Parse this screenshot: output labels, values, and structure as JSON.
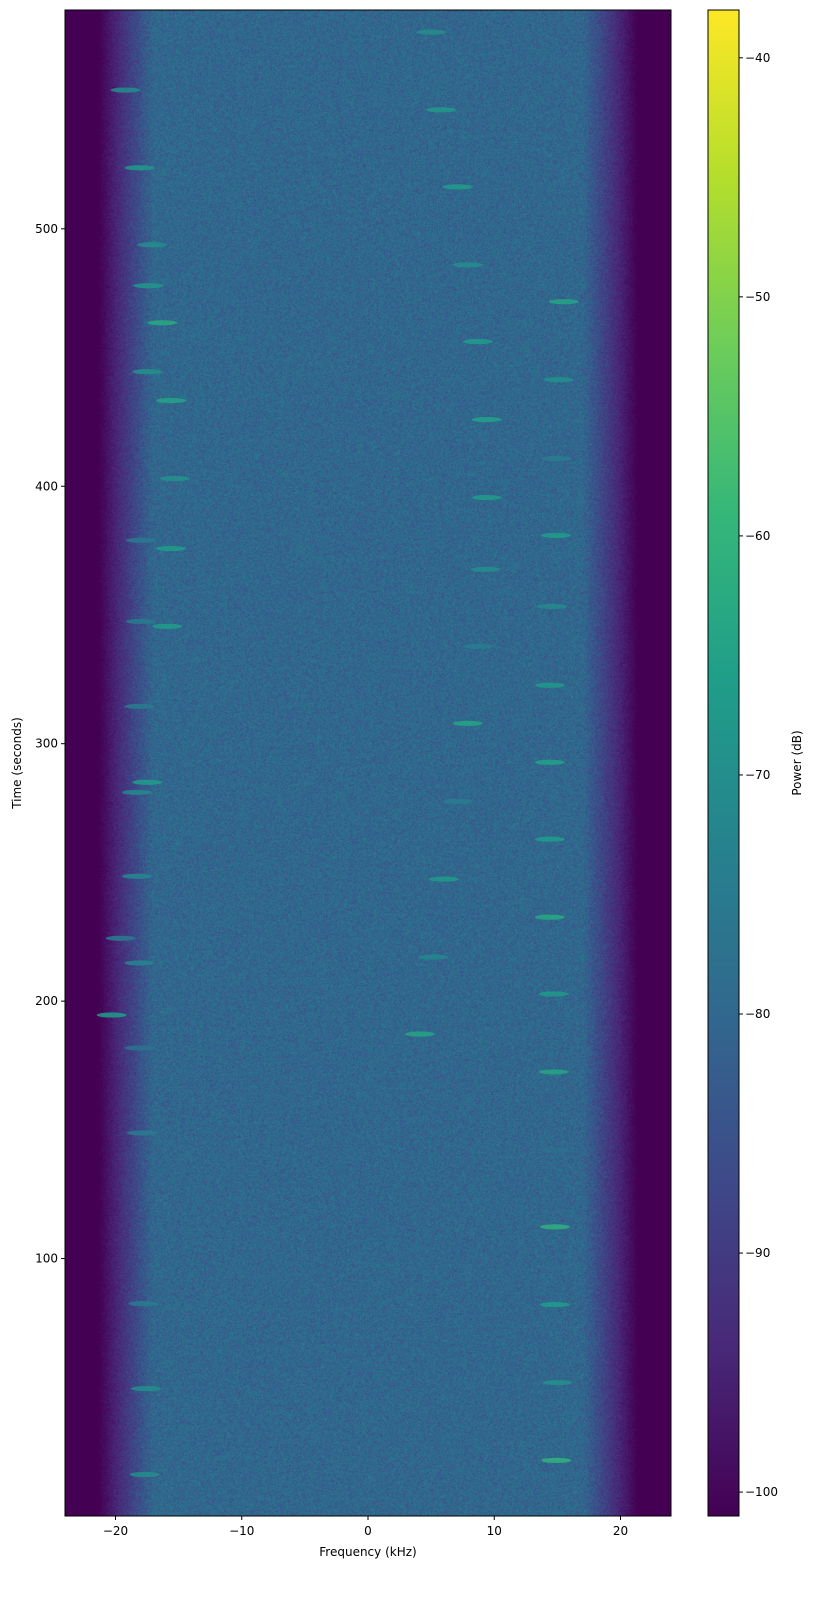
{
  "chart_data": {
    "type": "heatmap",
    "subtype": "spectrogram",
    "xlabel": "Frequency (kHz)",
    "ylabel": "Time (seconds)",
    "colorbar_label": "Power (dB)",
    "colormap": "viridis",
    "xlim": [
      -24,
      24
    ],
    "ylim": [
      0,
      585
    ],
    "clim": [
      -101,
      -38
    ],
    "xticks": [
      -20,
      -10,
      0,
      10,
      20
    ],
    "xtick_labels": [
      "−20",
      "−10",
      "0",
      "10",
      "20"
    ],
    "yticks": [
      100,
      200,
      300,
      400,
      500
    ],
    "ytick_labels": [
      "100",
      "200",
      "300",
      "400",
      "500"
    ],
    "cticks": [
      -40,
      -50,
      -60,
      -70,
      -80,
      -90,
      -100
    ],
    "ctick_labels": [
      "−40",
      "−50",
      "−60",
      "−70",
      "−80",
      "−90",
      "−100"
    ],
    "grid": false,
    "noise_floor_db": -80,
    "passband_khz": [
      -21,
      21
    ],
    "tones": [
      {
        "f": -19.2,
        "t": 553.9,
        "db": -70
      },
      {
        "f": -18.1,
        "t": 523.7,
        "db": -67
      },
      {
        "f": -17.1,
        "t": 493.8,
        "db": -70
      },
      {
        "f": -17.4,
        "t": 477.9,
        "db": -68
      },
      {
        "f": -16.3,
        "t": 463.5,
        "db": -63
      },
      {
        "f": -17.5,
        "t": 444.5,
        "db": -69
      },
      {
        "f": -15.6,
        "t": 433.3,
        "db": -64
      },
      {
        "f": -15.3,
        "t": 403.0,
        "db": -69
      },
      {
        "f": -18.0,
        "t": 379.0,
        "db": -75
      },
      {
        "f": -15.6,
        "t": 375.8,
        "db": -66
      },
      {
        "f": -18.0,
        "t": 347.5,
        "db": -75
      },
      {
        "f": -15.9,
        "t": 345.6,
        "db": -66
      },
      {
        "f": -18.1,
        "t": 314.5,
        "db": -75
      },
      {
        "f": -17.5,
        "t": 285.0,
        "db": -66
      },
      {
        "f": -18.3,
        "t": 281.1,
        "db": -71
      },
      {
        "f": -18.3,
        "t": 248.5,
        "db": -71
      },
      {
        "f": -19.6,
        "t": 224.4,
        "db": -75
      },
      {
        "f": -18.1,
        "t": 214.8,
        "db": -72
      },
      {
        "f": -20.3,
        "t": 194.6,
        "db": -66
      },
      {
        "f": -18.1,
        "t": 181.8,
        "db": -77
      },
      {
        "f": -17.9,
        "t": 148.8,
        "db": -75
      },
      {
        "f": -17.8,
        "t": 82.5,
        "db": -75
      },
      {
        "f": -17.6,
        "t": 49.5,
        "db": -70
      },
      {
        "f": -17.7,
        "t": 16.1,
        "db": -70
      },
      {
        "f": 5.0,
        "t": 576.4,
        "db": -70
      },
      {
        "f": 5.8,
        "t": 546.2,
        "db": -67
      },
      {
        "f": 7.1,
        "t": 516.3,
        "db": -66
      },
      {
        "f": 7.9,
        "t": 486.0,
        "db": -70
      },
      {
        "f": 8.7,
        "t": 456.2,
        "db": -66
      },
      {
        "f": 9.4,
        "t": 425.9,
        "db": -65
      },
      {
        "f": 9.4,
        "t": 395.6,
        "db": -66
      },
      {
        "f": 9.3,
        "t": 367.7,
        "db": -70
      },
      {
        "f": 8.7,
        "t": 337.8,
        "db": -74
      },
      {
        "f": 7.9,
        "t": 307.9,
        "db": -64
      },
      {
        "f": 7.1,
        "t": 277.6,
        "db": -74
      },
      {
        "f": 6.0,
        "t": 247.4,
        "db": -67
      },
      {
        "f": 5.2,
        "t": 217.1,
        "db": -72
      },
      {
        "f": 4.1,
        "t": 187.2,
        "db": -64
      },
      {
        "f": 15.5,
        "t": 471.7,
        "db": -64
      },
      {
        "f": 15.1,
        "t": 441.4,
        "db": -69
      },
      {
        "f": 14.9,
        "t": 410.7,
        "db": -74
      },
      {
        "f": 14.9,
        "t": 380.9,
        "db": -66
      },
      {
        "f": 14.6,
        "t": 353.3,
        "db": -71
      },
      {
        "f": 14.4,
        "t": 322.7,
        "db": -67
      },
      {
        "f": 14.4,
        "t": 292.8,
        "db": -65
      },
      {
        "f": 14.4,
        "t": 262.9,
        "db": -66
      },
      {
        "f": 14.4,
        "t": 232.6,
        "db": -63
      },
      {
        "f": 14.7,
        "t": 202.8,
        "db": -67
      },
      {
        "f": 14.7,
        "t": 172.5,
        "db": -64
      },
      {
        "f": 14.8,
        "t": 142.2,
        "db": -78
      },
      {
        "f": 14.8,
        "t": 112.3,
        "db": -61
      },
      {
        "f": 14.8,
        "t": 82.1,
        "db": -66
      },
      {
        "f": 15.0,
        "t": 51.8,
        "db": -69
      },
      {
        "f": 14.9,
        "t": 21.6,
        "db": -60
      }
    ]
  }
}
